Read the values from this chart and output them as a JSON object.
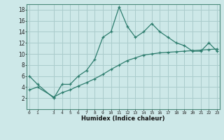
{
  "xlabel": "Humidex (Indice chaleur)",
  "x": [
    0,
    1,
    3,
    4,
    5,
    6,
    7,
    8,
    9,
    10,
    11,
    12,
    13,
    14,
    15,
    16,
    17,
    18,
    19,
    20,
    21,
    22,
    23
  ],
  "y_upper": [
    6,
    4.5,
    2,
    4.5,
    4.5,
    6,
    7,
    9,
    13,
    14,
    18.5,
    15,
    13,
    14,
    15.5,
    14,
    13,
    12,
    11.5,
    10.5,
    10.5,
    12,
    10.5
  ],
  "y_lower": [
    3.5,
    4.0,
    2.2,
    3.0,
    3.5,
    4.2,
    4.8,
    5.5,
    6.3,
    7.2,
    8.0,
    8.8,
    9.3,
    9.8,
    10.0,
    10.2,
    10.3,
    10.4,
    10.5,
    10.6,
    10.7,
    10.8,
    10.9
  ],
  "line_color": "#2e7d6e",
  "bg_color": "#cde8e8",
  "grid_color": "#aacccc",
  "ylim": [
    0,
    19
  ],
  "xlim": [
    -0.3,
    23.3
  ],
  "yticks": [
    2,
    4,
    6,
    8,
    10,
    12,
    14,
    16,
    18
  ],
  "xticks": [
    0,
    1,
    3,
    4,
    5,
    6,
    7,
    8,
    9,
    10,
    11,
    12,
    13,
    14,
    15,
    16,
    17,
    18,
    19,
    20,
    21,
    22,
    23
  ]
}
